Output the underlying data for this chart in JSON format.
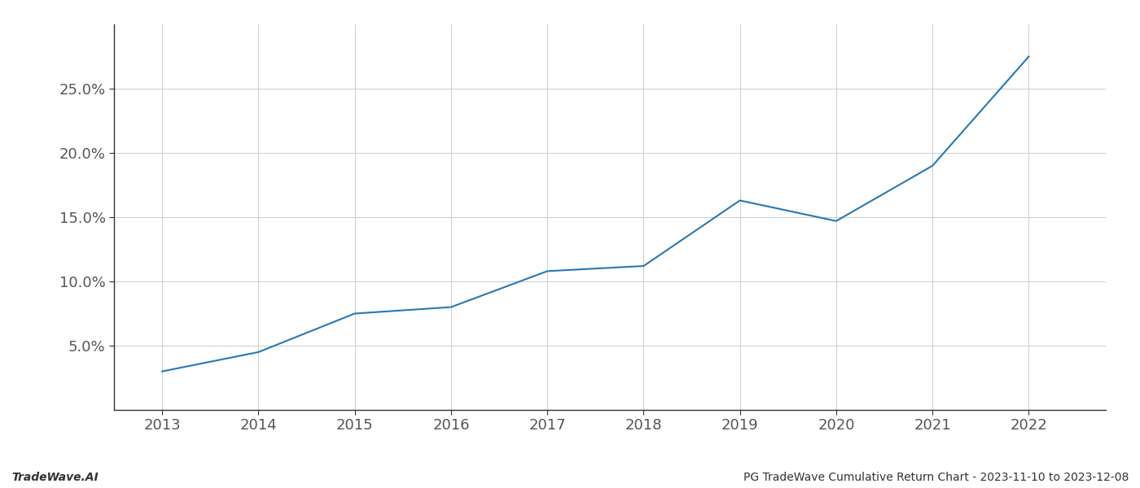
{
  "x_years": [
    2013,
    2014,
    2015,
    2016,
    2017,
    2018,
    2019,
    2020,
    2021,
    2022
  ],
  "y_values": [
    3.0,
    4.5,
    7.5,
    8.0,
    10.8,
    11.2,
    16.3,
    14.7,
    19.0,
    27.5
  ],
  "line_color": "#2878b5",
  "line_width": 1.5,
  "background_color": "#ffffff",
  "grid_color": "#cccccc",
  "footer_left": "TradeWave.AI",
  "footer_right": "PG TradeWave Cumulative Return Chart - 2023-11-10 to 2023-12-08",
  "xlim": [
    2012.5,
    2022.8
  ],
  "ylim": [
    0,
    30
  ],
  "yticks": [
    5.0,
    10.0,
    15.0,
    20.0,
    25.0
  ],
  "xticks": [
    2013,
    2014,
    2015,
    2016,
    2017,
    2018,
    2019,
    2020,
    2021,
    2022
  ],
  "tick_fontsize": 13,
  "footer_fontsize": 10,
  "spine_color": "#333333",
  "tick_color": "#555555"
}
